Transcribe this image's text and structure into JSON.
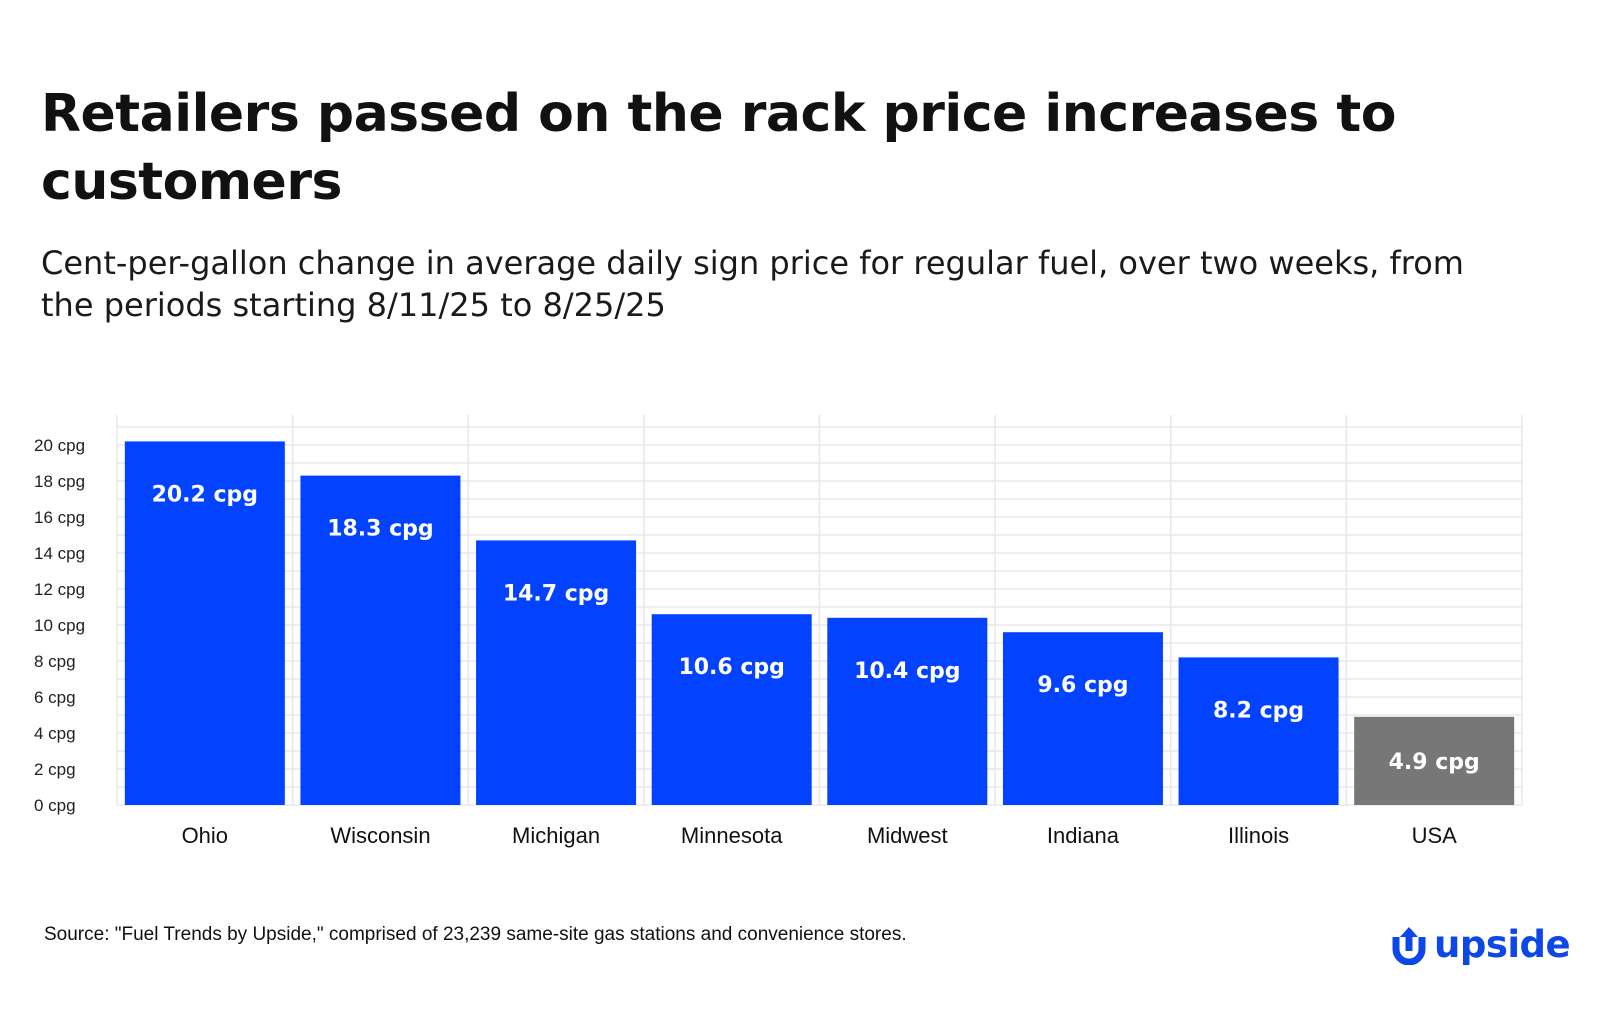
{
  "title": "Retailers passed on the rack price increases to customers",
  "subtitle": "Cent-per-gallon change in average daily sign price for regular fuel, over two weeks, from the periods starting 8/11/25 to 8/25/25",
  "source": "Source: \"Fuel Trends by Upside,\" comprised of 23,239 same-site gas stations and convenience stores.",
  "logo": {
    "text": "upside",
    "icon": "upside-arrow-logo-icon",
    "color": "#0d47e8"
  },
  "chart_data": {
    "type": "bar",
    "categories": [
      "Ohio",
      "Wisconsin",
      "Michigan",
      "Minnesota",
      "Midwest",
      "Indiana",
      "Illinois",
      "USA"
    ],
    "values": [
      20.2,
      18.3,
      14.7,
      10.6,
      10.4,
      9.6,
      8.2,
      4.9
    ],
    "data_labels": [
      "20.2 cpg",
      "18.3 cpg",
      "14.7 cpg",
      "10.6 cpg",
      "10.4 cpg",
      "9.6 cpg",
      "8.2 cpg",
      "4.9 cpg"
    ],
    "yticks": [
      0,
      2,
      4,
      6,
      8,
      10,
      12,
      14,
      16,
      18,
      20
    ],
    "ytick_labels": [
      "0 cpg",
      "2 cpg",
      "4 cpg",
      "6 cpg",
      "8 cpg",
      "10 cpg",
      "12 cpg",
      "14 cpg",
      "16 cpg",
      "18 cpg",
      "20 cpg"
    ],
    "ylim": [
      0,
      20
    ],
    "grid": true,
    "colors": {
      "bar": "#0343ff",
      "highlight": "#777777",
      "grid": "#e8e8e8"
    },
    "highlight_category": "USA"
  }
}
